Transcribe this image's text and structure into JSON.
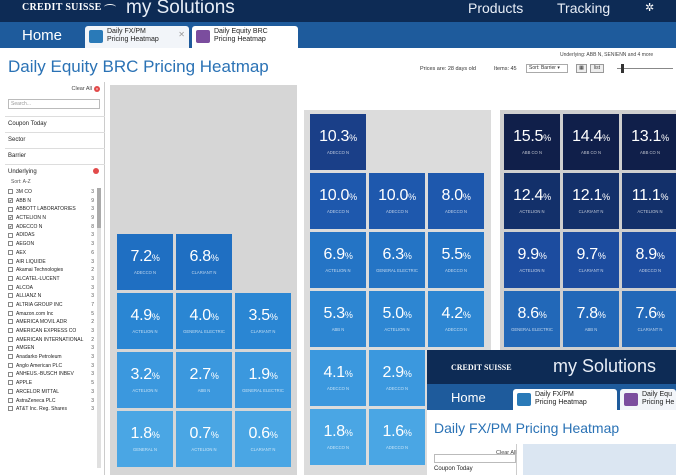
{
  "header": {
    "brand": "CREDIT SUISSE",
    "app_title": "my Solutions",
    "nav": [
      "Products",
      "Tracking"
    ],
    "home": "Home",
    "tabs": [
      {
        "label": "Daily FX/PM\nPricing Heatmap",
        "icon": "heatmap-doc-icon",
        "color": "#2a7ab8",
        "active": false
      },
      {
        "label": "Daily Equity BRC\nPricing Heatmap",
        "icon": "heatmap-doc-icon",
        "color": "#7b4d9e",
        "active": true
      }
    ]
  },
  "page": {
    "title": "Daily Equity BRC Pricing Heatmap",
    "underlying_note": "Underlying: ABB N, SENIENN and 4 more",
    "prices_as_of": "Prices are: 28 days old",
    "items": "Items: 45",
    "sort": "Sort: Barrier",
    "view_grid": "Grid",
    "view_list": "list"
  },
  "filters": {
    "clear_all": "Clear All",
    "search_placeholder": "Search...",
    "sections": [
      "Coupon Today",
      "Sector",
      "Barrier"
    ],
    "underlying_label": "Underlying",
    "sort_label": "Sort: A-Z",
    "underlyings": [
      {
        "name": "3M CO",
        "count": "3",
        "checked": false
      },
      {
        "name": "ABB N",
        "count": "9",
        "checked": true
      },
      {
        "name": "ABBOTT LABORATORIES",
        "count": "3",
        "checked": false
      },
      {
        "name": "ACTELION N",
        "count": "9",
        "checked": true
      },
      {
        "name": "ADECCO N",
        "count": "8",
        "checked": true
      },
      {
        "name": "ADIDAS",
        "count": "3",
        "checked": false
      },
      {
        "name": "AEGON",
        "count": "3",
        "checked": false
      },
      {
        "name": "AEX",
        "count": "6",
        "checked": false
      },
      {
        "name": "AIR LIQUIDE",
        "count": "3",
        "checked": false
      },
      {
        "name": "Akamai Technologies",
        "count": "2",
        "checked": false
      },
      {
        "name": "ALCATEL-LUCENT",
        "count": "3",
        "checked": false
      },
      {
        "name": "ALCOA",
        "count": "3",
        "checked": false
      },
      {
        "name": "ALLIANZ N",
        "count": "3",
        "checked": false
      },
      {
        "name": "ALTRIA GROUP INC",
        "count": "7",
        "checked": false
      },
      {
        "name": "Amazon.com Inc",
        "count": "5",
        "checked": false
      },
      {
        "name": "AMERICA MOVIL ADR",
        "count": "2",
        "checked": false
      },
      {
        "name": "AMERICAN EXPRESS CO",
        "count": "3",
        "checked": false
      },
      {
        "name": "AMERICAN INTERNATIONAL",
        "count": "2",
        "checked": false
      },
      {
        "name": "AMGEN",
        "count": "3",
        "checked": false
      },
      {
        "name": "Anadarko Petroleum",
        "count": "3",
        "checked": false
      },
      {
        "name": "Anglo American PLC",
        "count": "3",
        "checked": false
      },
      {
        "name": "ANHEUS.-BUSCH INBEV",
        "count": "3",
        "checked": false
      },
      {
        "name": "APPLE",
        "count": "5",
        "checked": false
      },
      {
        "name": "ARCELOR MITTAL",
        "count": "3",
        "checked": false
      },
      {
        "name": "AstraZeneca PLC",
        "count": "3",
        "checked": false
      },
      {
        "name": "AT&T Inc. Reg. Shares",
        "count": "3",
        "checked": false
      }
    ]
  },
  "heatmap": {
    "tiles": [
      {
        "value": "7.2",
        "pct": "%",
        "name": "ADECCO N",
        "color": "#1f6fc2"
      },
      {
        "value": "6.8",
        "pct": "%",
        "name": "CLARIANT N",
        "color": "#1f6fc2"
      },
      {
        "value": "4.9",
        "pct": "%",
        "name": "ACTELION N",
        "color": "#2a86d3"
      },
      {
        "value": "4.0",
        "pct": "%",
        "name": "GENERAL ELECTRIC",
        "color": "#2a86d3"
      },
      {
        "value": "3.5",
        "pct": "%",
        "name": "CLARIANT N",
        "color": "#2a86d3"
      },
      {
        "value": "3.2",
        "pct": "%",
        "name": "ACTELION N",
        "color": "#3b98de"
      },
      {
        "value": "2.7",
        "pct": "%",
        "name": "ABB N",
        "color": "#3b98de"
      },
      {
        "value": "1.9",
        "pct": "%",
        "name": "GENERAL ELECTRIC",
        "color": "#3b98de"
      },
      {
        "value": "1.8",
        "pct": "%",
        "name": "GENERAL N",
        "color": "#4aa6e4"
      },
      {
        "value": "0.7",
        "pct": "%",
        "name": "ACTELION N",
        "color": "#4aa6e4"
      },
      {
        "value": "0.6",
        "pct": "%",
        "name": "CLARIANT N",
        "color": "#4aa6e4"
      },
      {
        "value": "10.3",
        "pct": "%",
        "name": "ADECCO N",
        "color": "#1a3f88"
      },
      {
        "value": "10.0",
        "pct": "%",
        "name": "ADECCO N",
        "color": "#1e58ad"
      },
      {
        "value": "10.0",
        "pct": "%",
        "name": "ADECCO N",
        "color": "#1e58ad"
      },
      {
        "value": "8.0",
        "pct": "%",
        "name": "ADECCO N",
        "color": "#1e58ad"
      },
      {
        "value": "6.9",
        "pct": "%",
        "name": "ACTELION N",
        "color": "#2474c5"
      },
      {
        "value": "6.3",
        "pct": "%",
        "name": "GENERAL ELECTRIC",
        "color": "#2474c5"
      },
      {
        "value": "5.5",
        "pct": "%",
        "name": "ADECCO N",
        "color": "#2474c5"
      },
      {
        "value": "5.3",
        "pct": "%",
        "name": "ABB N",
        "color": "#2d86d2"
      },
      {
        "value": "5.0",
        "pct": "%",
        "name": "ACTELION N",
        "color": "#2d86d2"
      },
      {
        "value": "4.2",
        "pct": "%",
        "name": "ADECCO N",
        "color": "#2d86d2"
      },
      {
        "value": "4.1",
        "pct": "%",
        "name": "ADECCO N",
        "color": "#3b98de"
      },
      {
        "value": "2.9",
        "pct": "%",
        "name": "ADECCO N",
        "color": "#3b98de"
      },
      {
        "value": "1.8",
        "pct": "%",
        "name": "ADECCO N",
        "color": "#4aa6e4"
      },
      {
        "value": "1.6",
        "pct": "%",
        "name": "ADECCO N",
        "color": "#4aa6e4"
      },
      {
        "value": "15.5",
        "pct": "%",
        "name": "ABB CO N",
        "color": "#101f4a"
      },
      {
        "value": "14.4",
        "pct": "%",
        "name": "ABB CO N",
        "color": "#101f4a"
      },
      {
        "value": "13.1",
        "pct": "%",
        "name": "ABB CO N",
        "color": "#101f4a"
      },
      {
        "value": "12.4",
        "pct": "%",
        "name": "ACTELION N",
        "color": "#13306a"
      },
      {
        "value": "12.1",
        "pct": "%",
        "name": "CLARIANT N",
        "color": "#13306a"
      },
      {
        "value": "11.1",
        "pct": "%",
        "name": "ACTELION N",
        "color": "#13306a"
      },
      {
        "value": "9.9",
        "pct": "%",
        "name": "ACTELION N",
        "color": "#1c4c9f"
      },
      {
        "value": "9.7",
        "pct": "%",
        "name": "CLARIANT N",
        "color": "#1c4c9f"
      },
      {
        "value": "8.9",
        "pct": "%",
        "name": "ADECCO N",
        "color": "#1c4c9f"
      },
      {
        "value": "8.6",
        "pct": "%",
        "name": "GENERAL ELECTRIC",
        "color": "#2268b8"
      },
      {
        "value": "7.8",
        "pct": "%",
        "name": "ABB N",
        "color": "#2268b8"
      },
      {
        "value": "7.6",
        "pct": "%",
        "name": "CLARIANT N",
        "color": "#2268b8"
      }
    ]
  },
  "overlay": {
    "brand": "CREDIT SUISSE",
    "app_title": "my Solutions",
    "home": "Home",
    "tab1": "Daily FX/PM\nPricing Heatmap",
    "tab2": "Daily Equ\nPricing He",
    "title": "Daily FX/PM Pricing Heatmap",
    "clear_all": "Clear All",
    "coupon": "Coupon Today"
  }
}
